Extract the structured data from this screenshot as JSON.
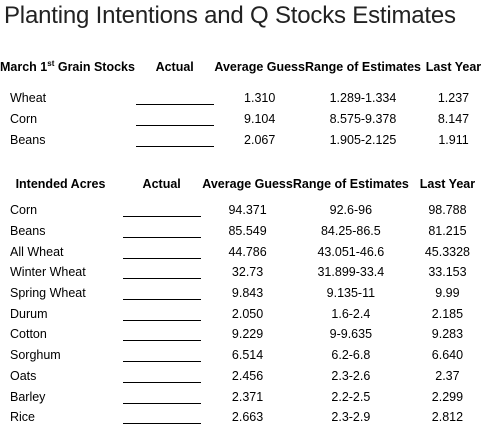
{
  "title": "Planting Intentions and Q Stocks Estimates",
  "stocks": {
    "header": {
      "label_pre": "March 1",
      "label_sup": "st",
      "label_post": " Grain Stocks",
      "actual": "Actual",
      "avg": "Average Guess",
      "range": "Range of Estimates",
      "last": "Last Year"
    },
    "rows": [
      {
        "name": "Wheat",
        "avg": "1.310",
        "range": "1.289-1.334",
        "last": "1.237"
      },
      {
        "name": "Corn",
        "avg": "9.104",
        "range": "8.575-9.378",
        "last": "8.147"
      },
      {
        "name": "Beans",
        "avg": "2.067",
        "range": "1.905-2.125",
        "last": "1.911"
      }
    ]
  },
  "acres": {
    "header": {
      "label": "Intended Acres",
      "actual": "Actual",
      "avg": "Average Guess",
      "range": "Range of Estimates",
      "last": "Last Year"
    },
    "rows": [
      {
        "name": "Corn",
        "avg": "94.371",
        "range": "92.6-96",
        "last": "98.788"
      },
      {
        "name": "Beans",
        "avg": "85.549",
        "range": "84.25-86.5",
        "last": "81.215"
      },
      {
        "name": "All Wheat",
        "avg": "44.786",
        "range": "43.051-46.6",
        "last": "45.3328"
      },
      {
        "name": "Winter Wheat",
        "avg": "32.73",
        "range": "31.899-33.4",
        "last": "33.153"
      },
      {
        "name": "Spring Wheat",
        "avg": "9.843",
        "range": "9.135-11",
        "last": "9.99"
      },
      {
        "name": "Durum",
        "avg": "2.050",
        "range": "1.6-2.4",
        "last": "2.185"
      },
      {
        "name": "Cotton",
        "avg": "9.229",
        "range": "9-9.635",
        "last": "9.283"
      },
      {
        "name": "Sorghum",
        "avg": "6.514",
        "range": "6.2-6.8",
        "last": "6.640"
      },
      {
        "name": "Oats",
        "avg": "2.456",
        "range": "2.3-2.6",
        "last": "2.37"
      },
      {
        "name": "Barley",
        "avg": "2.371",
        "range": "2.2-2.5",
        "last": "2.299"
      },
      {
        "name": "Rice",
        "avg": "2.663",
        "range": "2.3-2.9",
        "last": "2.812"
      }
    ]
  }
}
